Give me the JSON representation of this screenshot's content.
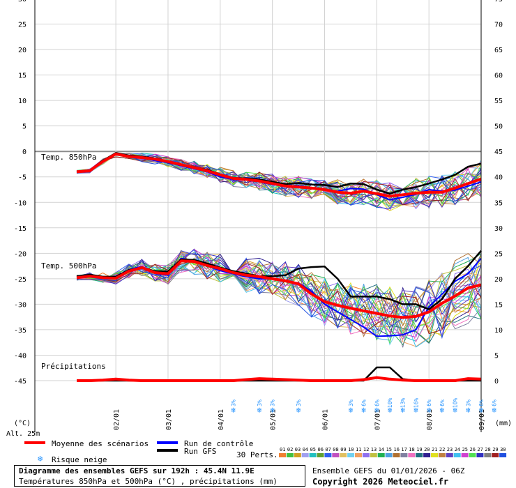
{
  "chart_data": {
    "type": "line",
    "title": "Diagramme des ensembles GEFS sur 192h : 45.4N 11.9E",
    "subtitle": "Températures 850hPa et 500hPa (°C) , précipitations (mm)",
    "run_label": "Ensemble GEFS du 01/01/2026 - 06Z",
    "copyright": "Copyright 2026 Meteociel.fr",
    "y_left_unit": "(°C)",
    "y_right_unit": "(mm)",
    "altitude": "Alt. 25m",
    "y_left_ticks": [
      "30",
      "25",
      "20",
      "15",
      "10",
      "5",
      "0",
      "-5",
      "-10",
      "-15",
      "-20",
      "-25",
      "-30",
      "-35",
      "-40",
      "-45"
    ],
    "y_right_ticks": [
      "75",
      "70",
      "65",
      "60",
      "55",
      "50",
      "45",
      "40",
      "35",
      "30",
      "25",
      "20",
      "15",
      "10",
      "5",
      "0"
    ],
    "ylim_left": [
      -45,
      30
    ],
    "ylim_right": [
      0,
      75
    ],
    "x_ticks": [
      "02/01",
      "03/01",
      "04/01",
      "05/01",
      "06/01",
      "07/01",
      "08/01",
      "09/01"
    ],
    "panel_labels": {
      "t850": "Temp. 850hPa",
      "t500": "Temp. 500hPa",
      "precip": "Précipitations"
    },
    "legend": {
      "mean": "Moyenne des scénarios",
      "control": "Run de contrôle",
      "gfs": "Run GFS",
      "snow": "Risque neige",
      "perts": "30 Perts."
    },
    "member_labels": [
      "01",
      "02",
      "03",
      "04",
      "05",
      "06",
      "07",
      "08",
      "09",
      "10",
      "11",
      "12",
      "13",
      "14",
      "15",
      "16",
      "17",
      "18",
      "19",
      "20",
      "21",
      "22",
      "23",
      "24",
      "25",
      "26",
      "27",
      "28",
      "29",
      "30"
    ],
    "member_colors": [
      "#f08030",
      "#40c040",
      "#d0a020",
      "#a0a0f0",
      "#20c0c0",
      "#60a030",
      "#3060f0",
      "#c050c0",
      "#e0c060",
      "#70d0f0",
      "#f0a060",
      "#9070f0",
      "#c0c040",
      "#20b050",
      "#50a0e0",
      "#b07030",
      "#8080a0",
      "#f070c0",
      "#207080",
      "#302090",
      "#e0e020",
      "#c08040",
      "#6040c0",
      "#40c0f0",
      "#d040d0",
      "#50e050",
      "#3030c0",
      "#808080",
      "#a02020",
      "#2050e0"
    ],
    "colors": {
      "mean": "#ff0000",
      "control": "#0000ff",
      "gfs": "#000000",
      "snow": "#1e90ff"
    },
    "snow_risk": [
      {
        "x": "04/01 06h",
        "pct": "3%"
      },
      {
        "x": "04/01 18h",
        "pct": "3%"
      },
      {
        "x": "05/01 00h",
        "pct": "3%"
      },
      {
        "x": "05/01 12h",
        "pct": "3%"
      },
      {
        "x": "06/01 12h",
        "pct": "3%"
      },
      {
        "x": "06/01 18h",
        "pct": "6%"
      },
      {
        "x": "07/01 00h",
        "pct": "6%"
      },
      {
        "x": "07/01 06h",
        "pct": "10%"
      },
      {
        "x": "07/01 12h",
        "pct": "13%"
      },
      {
        "x": "07/01 18h",
        "pct": "16%"
      },
      {
        "x": "08/01 00h",
        "pct": "6%"
      },
      {
        "x": "08/01 06h",
        "pct": "6%"
      },
      {
        "x": "08/01 12h",
        "pct": "10%"
      },
      {
        "x": "08/01 18h",
        "pct": "3%"
      },
      {
        "x": "09/01 00h",
        "pct": "6%"
      },
      {
        "x": "09/01 06h",
        "pct": "6%"
      }
    ],
    "x_hours": [
      6,
      12,
      18,
      24,
      30,
      36,
      42,
      48,
      54,
      60,
      66,
      72,
      78,
      84,
      90,
      96,
      102,
      108,
      114,
      120,
      126,
      132,
      138,
      144,
      150,
      156,
      162,
      168,
      174,
      180,
      186,
      192
    ],
    "series": [
      {
        "name": "Moyenne des scénarios",
        "panel": "t850",
        "values": [
          -4,
          -3.8,
          -2,
          -0.5,
          -1,
          -1.2,
          -1.5,
          -2,
          -2.6,
          -3.2,
          -3.8,
          -4.6,
          -5.3,
          -5.5,
          -5.8,
          -6.3,
          -6.8,
          -7,
          -7.2,
          -7.5,
          -8,
          -8.2,
          -7.8,
          -8.3,
          -8.8,
          -8.5,
          -8.2,
          -8,
          -8,
          -7.2,
          -6.3,
          -5.4
        ]
      },
      {
        "name": "Run de contrôle",
        "panel": "t850",
        "values": [
          -4,
          -3.8,
          -2,
          -0.6,
          -0.8,
          -1.2,
          -1.8,
          -2.2,
          -2.8,
          -3.4,
          -4,
          -5,
          -5.5,
          -5.6,
          -6,
          -6.5,
          -6.8,
          -6.7,
          -7.2,
          -7.5,
          -7.8,
          -7.3,
          -7.4,
          -8.5,
          -9.5,
          -9,
          -8.4,
          -7.5,
          -7.8,
          -7.6,
          -6.8,
          -6
        ]
      },
      {
        "name": "Run GFS",
        "panel": "t850",
        "values": [
          -4,
          -3.7,
          -1.8,
          -0.3,
          -0.8,
          -1,
          -1.4,
          -2,
          -2.6,
          -3.2,
          -3.6,
          -4.5,
          -5.2,
          -5.3,
          -5.5,
          -6,
          -6.4,
          -6.2,
          -6.5,
          -6.6,
          -7,
          -6.3,
          -6.4,
          -7.5,
          -8.3,
          -7.5,
          -7,
          -6.3,
          -5.5,
          -4.6,
          -3,
          -2.4
        ]
      },
      {
        "name": "Moyenne des scénarios",
        "panel": "t500",
        "values": [
          -24.8,
          -24.5,
          -24.8,
          -24.9,
          -23.5,
          -22.8,
          -23.8,
          -24,
          -21.5,
          -21.6,
          -22.4,
          -23,
          -23.8,
          -24.3,
          -24.6,
          -25,
          -25.4,
          -26,
          -28,
          -29.5,
          -30.2,
          -30.8,
          -31.3,
          -31.8,
          -32.3,
          -32.6,
          -32.4,
          -31.5,
          -29.8,
          -28.4,
          -26.8,
          -26.2
        ]
      },
      {
        "name": "Run de contrôle",
        "panel": "t500",
        "values": [
          -24.6,
          -24.3,
          -24.8,
          -24.7,
          -23.2,
          -22.6,
          -24,
          -24.3,
          -21,
          -21.4,
          -22.5,
          -23.4,
          -24,
          -24.6,
          -25,
          -25,
          -25.5,
          -25.8,
          -27.5,
          -30,
          -31.5,
          -33,
          -34.5,
          -36.3,
          -36.2,
          -36,
          -35,
          -30.5,
          -28,
          -25.5,
          -24,
          -21
        ]
      },
      {
        "name": "Run GFS",
        "panel": "t500",
        "values": [
          -24.5,
          -24.2,
          -24.6,
          -24.6,
          -23.3,
          -22.8,
          -23.5,
          -23.6,
          -21.2,
          -21.3,
          -22,
          -22.8,
          -23.5,
          -24,
          -24.5,
          -24.5,
          -24.3,
          -23,
          -22.7,
          -22.6,
          -25,
          -28.5,
          -28.5,
          -28.5,
          -29,
          -30,
          -30,
          -31,
          -29,
          -25,
          -22.5,
          -19.5
        ]
      },
      {
        "name": "Moyenne des scénarios",
        "panel": "precip",
        "values": [
          0,
          0,
          0.1,
          0.3,
          0.1,
          0,
          0,
          0,
          0,
          0,
          0,
          0,
          0,
          0.2,
          0.4,
          0.3,
          0.2,
          0.1,
          0,
          0,
          0,
          0,
          0.2,
          0.6,
          0.3,
          0.1,
          0,
          0,
          0,
          0,
          0.4,
          0.3
        ]
      },
      {
        "name": "Run GFS",
        "panel": "precip",
        "values": [
          0,
          0,
          0,
          0,
          0,
          0,
          0,
          0,
          0,
          0,
          0,
          0,
          0,
          0,
          0,
          0,
          0,
          0,
          0,
          0,
          0,
          0,
          0,
          2.6,
          2.6,
          0.3,
          0,
          0,
          0,
          0,
          0,
          0
        ]
      }
    ]
  }
}
